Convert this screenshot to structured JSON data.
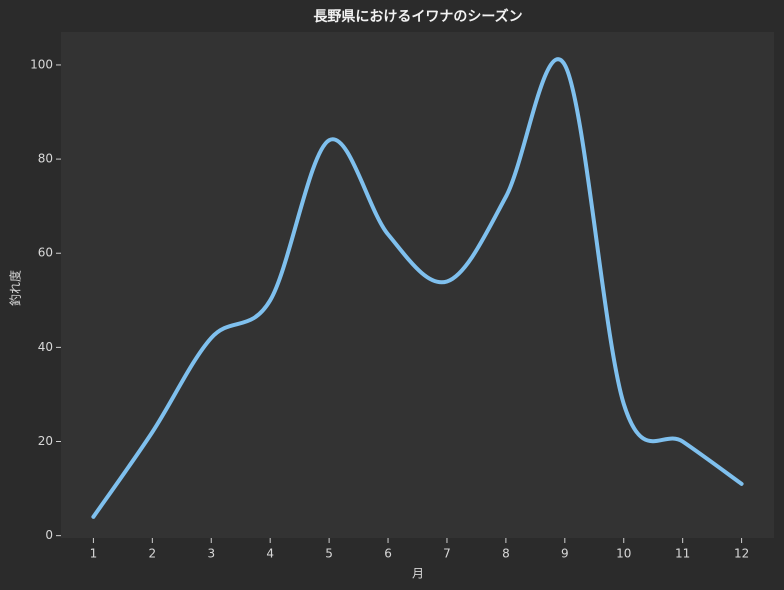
{
  "chart_data": {
    "type": "line",
    "title": "長野県におけるイワナのシーズン",
    "x_label": "月",
    "y_label": "釣れ度",
    "x": [
      1,
      2,
      3,
      4,
      5,
      6,
      7,
      8,
      9,
      10,
      11,
      12
    ],
    "values": [
      4,
      22,
      42,
      50,
      84,
      64,
      54,
      72,
      100,
      28,
      20,
      11
    ],
    "color": "#7fc0ee",
    "xlim": [
      0.45,
      12.55
    ],
    "xticks": [
      1,
      2,
      3,
      4,
      5,
      6,
      7,
      8,
      9,
      10,
      11,
      12
    ],
    "ylim": [
      -0.5,
      107
    ],
    "yticks": [
      0,
      20,
      40,
      60,
      80,
      100
    ],
    "grid": false
  }
}
